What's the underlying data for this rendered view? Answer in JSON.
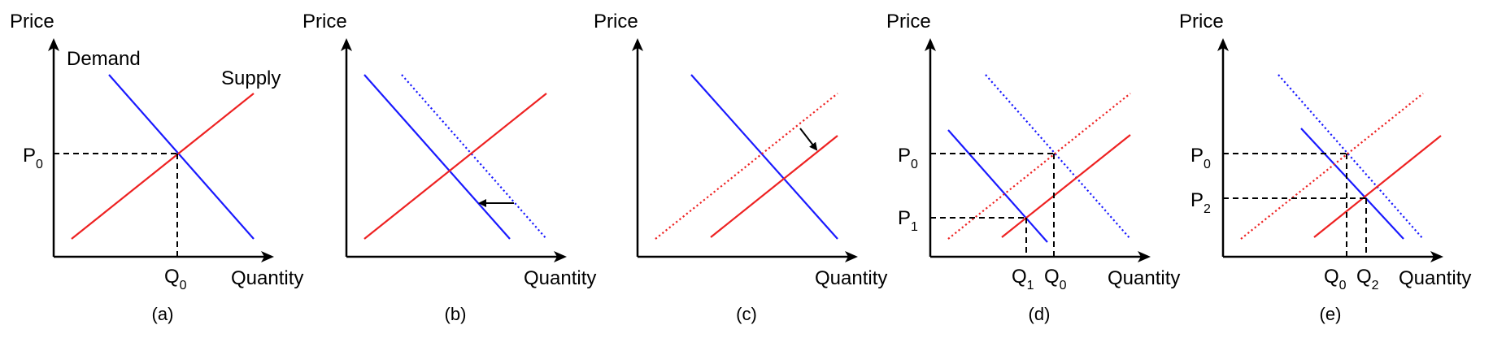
{
  "labels": {
    "price": "Price",
    "quantity": "Quantity",
    "demand": "Demand",
    "supply": "Supply",
    "p_letter": "P",
    "q_letter": "Q",
    "idx_0": "0",
    "idx_1": "1",
    "idx_2": "2"
  },
  "panels": [
    {
      "caption": "(a)"
    },
    {
      "caption": "(b)"
    },
    {
      "caption": "(c)"
    },
    {
      "caption": "(d)"
    },
    {
      "caption": "(e)"
    }
  ],
  "colors": {
    "demand": "#1a1aff",
    "supply": "#ee2222",
    "axis": "#000000"
  }
}
